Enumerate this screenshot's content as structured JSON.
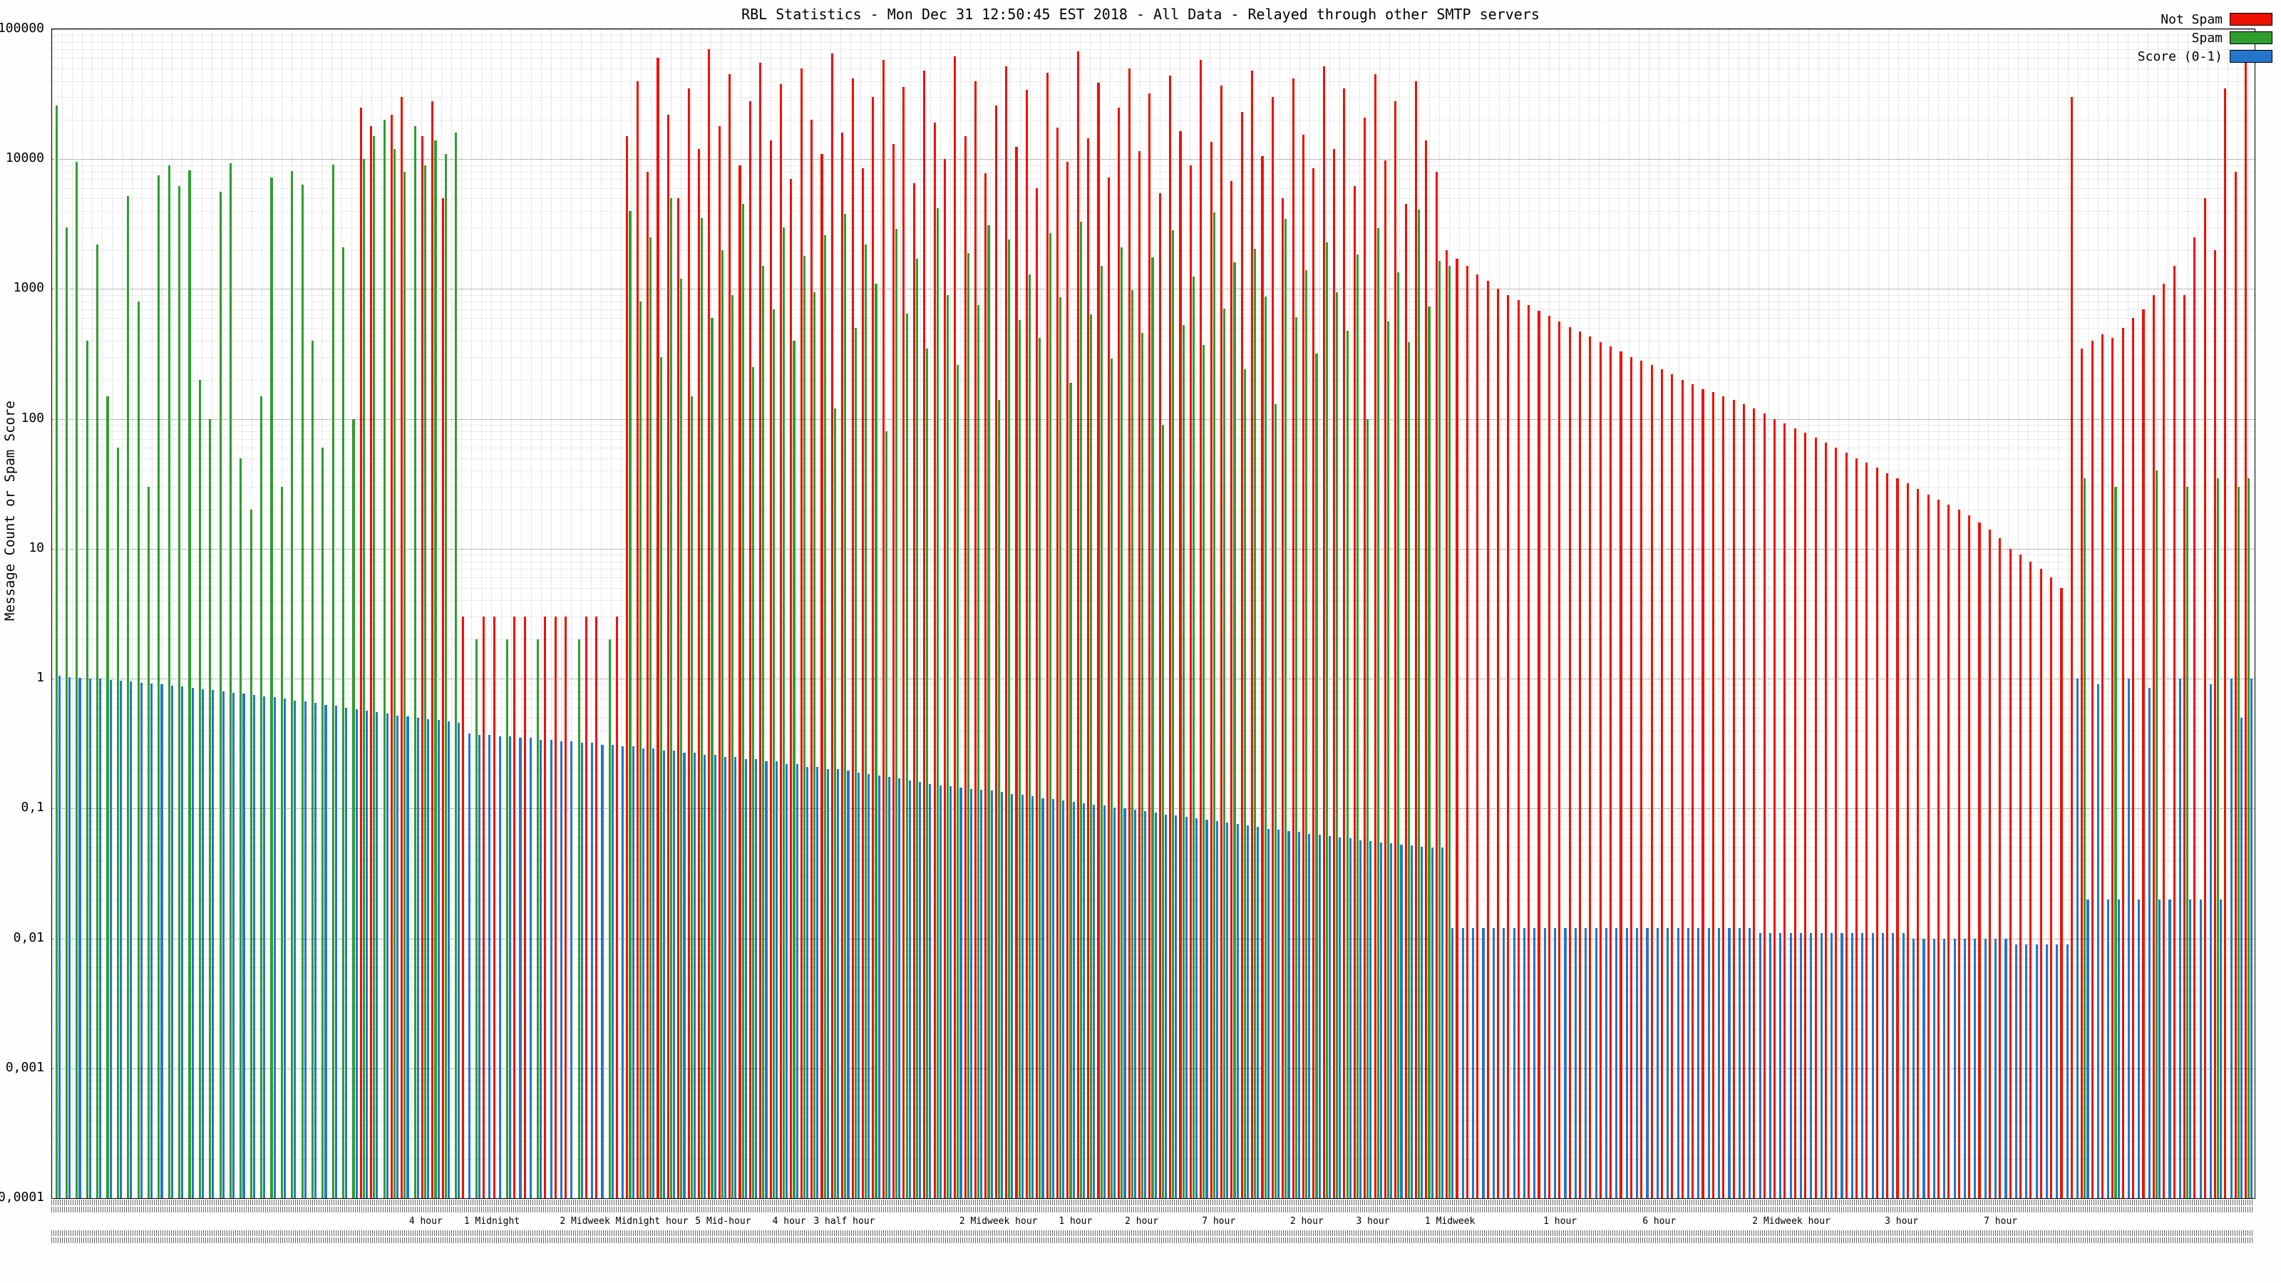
{
  "chart_data": {
    "type": "bar",
    "title": "RBL Statistics - Mon Dec 31 12:50:45 EST 2018 - All Data - Relayed through other SMTP servers",
    "ylabel": "Message Count or Spam Score",
    "xlabel": "",
    "y_scale": "log",
    "ylim": [
      0.0001,
      100000
    ],
    "y_ticks": [
      "100000",
      "10000",
      "1000",
      "100",
      "10",
      "1",
      "0,1",
      "0,01",
      "0,001",
      "0,0001"
    ],
    "grid": true,
    "legend_position": "top-right",
    "n_bars": 215,
    "series": [
      {
        "key": "not-spam",
        "name": "Not Spam",
        "color": "#ee1100",
        "values": [
          0,
          0,
          0,
          0,
          0,
          0,
          0,
          0,
          0,
          0,
          0,
          0,
          0,
          0,
          0,
          0,
          0,
          0,
          0,
          0,
          0,
          0,
          0,
          0,
          0,
          0,
          0,
          0,
          0,
          0,
          25000,
          18000,
          0,
          22000,
          30000,
          0,
          15000,
          28000,
          5000,
          0,
          3,
          0,
          3,
          3,
          0,
          3,
          3,
          0,
          3,
          3,
          3,
          0,
          3,
          3,
          0,
          3,
          15000,
          40000,
          8000,
          60000,
          22000,
          5000,
          35000,
          12000,
          70000,
          18000,
          45000,
          9000,
          28000,
          55000,
          14000,
          38000,
          7000,
          50000,
          20000,
          11000,
          65000,
          16000,
          42000,
          8500,
          30000,
          58000,
          13000,
          36000,
          6500,
          48000,
          19000,
          10000,
          62000,
          15000,
          40000,
          7800,
          26000,
          52000,
          12500,
          34000,
          6000,
          46000,
          17500,
          9500,
          68000,
          14500,
          39000,
          7200,
          25000,
          50000,
          11500,
          32000,
          5500,
          44000,
          16500,
          9000,
          58000,
          13500,
          37000,
          6800,
          23000,
          48000,
          10500,
          30000,
          5000,
          42000,
          15500,
          8500,
          52000,
          12000,
          35000,
          6200,
          21000,
          45000,
          9800,
          28000,
          4500,
          40000,
          14000,
          8000,
          2000,
          1700,
          1500,
          1300,
          1150,
          1000,
          900,
          820,
          750,
          680,
          620,
          560,
          510,
          470,
          430,
          390,
          360,
          330,
          300,
          280,
          260,
          240,
          220,
          200,
          185,
          170,
          160,
          150,
          140,
          130,
          120,
          110,
          100,
          92,
          85,
          78,
          72,
          66,
          60,
          55,
          50,
          46,
          42,
          38,
          35,
          32,
          29,
          26,
          24,
          22,
          20,
          18,
          16,
          14,
          12,
          10,
          9,
          8,
          7,
          6,
          5,
          30000,
          350,
          400,
          450,
          420,
          500,
          600,
          700,
          900,
          1100,
          1500,
          900,
          2500,
          5000,
          2000,
          35000,
          8000,
          60000
        ]
      },
      {
        "key": "spam",
        "name": "Spam",
        "color": "#2f9e2f",
        "values": [
          26000,
          3000,
          9500,
          400,
          2200,
          150,
          60,
          5200,
          800,
          30,
          7500,
          9000,
          6200,
          8200,
          200,
          100,
          5600,
          9300,
          50,
          20,
          150,
          7200,
          30,
          8100,
          6400,
          400,
          60,
          9100,
          2100,
          100,
          10000,
          15000,
          20000,
          12000,
          8000,
          18000,
          9000,
          14000,
          11000,
          16000,
          0,
          2,
          0,
          0,
          2,
          0,
          0,
          2,
          0,
          0,
          0,
          2,
          0,
          0,
          2,
          0,
          4000,
          800,
          2500,
          300,
          5000,
          1200,
          150,
          3500,
          600,
          2000,
          900,
          4500,
          250,
          1500,
          700,
          3000,
          400,
          1800,
          950,
          2600,
          120,
          3800,
          500,
          2200,
          1100,
          80,
          2900,
          650,
          1700,
          350,
          4200,
          900,
          260,
          1900,
          750,
          3100,
          140,
          2400,
          580,
          1300,
          420,
          2700,
          860,
          190,
          3300,
          640,
          1500,
          290,
          2100,
          980,
          460,
          1750,
          90,
          2850,
          530,
          1250,
          370,
          3900,
          710,
          1600,
          240,
          2050,
          880,
          130,
          3450,
          610,
          1400,
          320,
          2300,
          940,
          480,
          1850,
          100,
          2950,
          560,
          1350,
          390,
          4100,
          730,
          1650,
          1500,
          0,
          0,
          0,
          0,
          0,
          0,
          0,
          0,
          0,
          0,
          0,
          0,
          0,
          0,
          0,
          0,
          0,
          0,
          0,
          0,
          0,
          0,
          0,
          0,
          0,
          0,
          0,
          0,
          0,
          0,
          0,
          0,
          0,
          0,
          0,
          0,
          0,
          0,
          0,
          0,
          0,
          0,
          0,
          0,
          0,
          0,
          0,
          0,
          0,
          0,
          0,
          0,
          0,
          0,
          0,
          0,
          0,
          0,
          0,
          0,
          0,
          35,
          0,
          0,
          30,
          0,
          0,
          0,
          40,
          0,
          0,
          30,
          0,
          0,
          35,
          0,
          30,
          35
        ]
      },
      {
        "key": "score",
        "name": "Score (0-1)",
        "color": "#2277cc",
        "values": [
          1.05,
          1.03,
          1.02,
          1.0,
          1.0,
          0.98,
          0.97,
          0.95,
          0.93,
          0.92,
          0.9,
          0.88,
          0.87,
          0.85,
          0.83,
          0.82,
          0.8,
          0.78,
          0.77,
          0.75,
          0.73,
          0.72,
          0.7,
          0.68,
          0.67,
          0.65,
          0.63,
          0.62,
          0.6,
          0.58,
          0.57,
          0.55,
          0.54,
          0.52,
          0.51,
          0.5,
          0.49,
          0.48,
          0.47,
          0.46,
          0.38,
          0.37,
          0.37,
          0.36,
          0.36,
          0.35,
          0.35,
          0.34,
          0.34,
          0.33,
          0.33,
          0.32,
          0.32,
          0.31,
          0.31,
          0.3,
          0.3,
          0.29,
          0.29,
          0.28,
          0.28,
          0.27,
          0.27,
          0.26,
          0.26,
          0.25,
          0.25,
          0.24,
          0.24,
          0.23,
          0.23,
          0.22,
          0.22,
          0.21,
          0.21,
          0.2,
          0.2,
          0.195,
          0.19,
          0.185,
          0.18,
          0.175,
          0.17,
          0.165,
          0.16,
          0.155,
          0.15,
          0.148,
          0.145,
          0.142,
          0.14,
          0.137,
          0.134,
          0.13,
          0.127,
          0.124,
          0.12,
          0.118,
          0.115,
          0.112,
          0.11,
          0.107,
          0.105,
          0.102,
          0.1,
          0.098,
          0.095,
          0.093,
          0.09,
          0.088,
          0.086,
          0.084,
          0.082,
          0.08,
          0.078,
          0.076,
          0.074,
          0.072,
          0.07,
          0.069,
          0.067,
          0.066,
          0.064,
          0.063,
          0.061,
          0.06,
          0.059,
          0.057,
          0.056,
          0.055,
          0.054,
          0.053,
          0.052,
          0.051,
          0.05,
          0.05,
          0.012,
          0.012,
          0.012,
          0.012,
          0.012,
          0.012,
          0.012,
          0.012,
          0.012,
          0.012,
          0.012,
          0.012,
          0.012,
          0.012,
          0.012,
          0.012,
          0.012,
          0.012,
          0.012,
          0.012,
          0.012,
          0.012,
          0.012,
          0.012,
          0.012,
          0.012,
          0.012,
          0.012,
          0.012,
          0.012,
          0.011,
          0.011,
          0.011,
          0.011,
          0.011,
          0.011,
          0.011,
          0.011,
          0.011,
          0.011,
          0.011,
          0.011,
          0.011,
          0.011,
          0.011,
          0.01,
          0.01,
          0.01,
          0.01,
          0.01,
          0.01,
          0.01,
          0.01,
          0.01,
          0.01,
          0.009,
          0.009,
          0.009,
          0.009,
          0.009,
          0.009,
          1.0,
          0.02,
          0.9,
          0.02,
          0.02,
          1.0,
          0.02,
          0.85,
          0.02,
          0.02,
          1.0,
          0.02,
          0.02,
          0.9,
          0.02,
          1.0,
          0.5,
          1.0
        ]
      }
    ],
    "x_group_labels": [
      {
        "pos": 17,
        "text": "4 hour"
      },
      {
        "pos": 20,
        "text": "1 Midnight"
      },
      {
        "pos": 26,
        "text": "2 Midweek Midnight hour"
      },
      {
        "pos": 30.5,
        "text": "5 Mid-hour"
      },
      {
        "pos": 33.5,
        "text": "4 hour"
      },
      {
        "pos": 36,
        "text": "3 half hour"
      },
      {
        "pos": 43,
        "text": "2 Midweek hour"
      },
      {
        "pos": 46.5,
        "text": "1 hour"
      },
      {
        "pos": 49.5,
        "text": "2 hour"
      },
      {
        "pos": 53,
        "text": "7 hour"
      },
      {
        "pos": 57,
        "text": "2 hour"
      },
      {
        "pos": 60,
        "text": "3 hour"
      },
      {
        "pos": 63.5,
        "text": "1 Midweek"
      },
      {
        "pos": 68.5,
        "text": "1 hour"
      },
      {
        "pos": 73,
        "text": "6 hour"
      },
      {
        "pos": 79,
        "text": "2 Midweek hour"
      },
      {
        "pos": 84,
        "text": "3 hour"
      },
      {
        "pos": 88.5,
        "text": "7 hour"
      }
    ]
  }
}
